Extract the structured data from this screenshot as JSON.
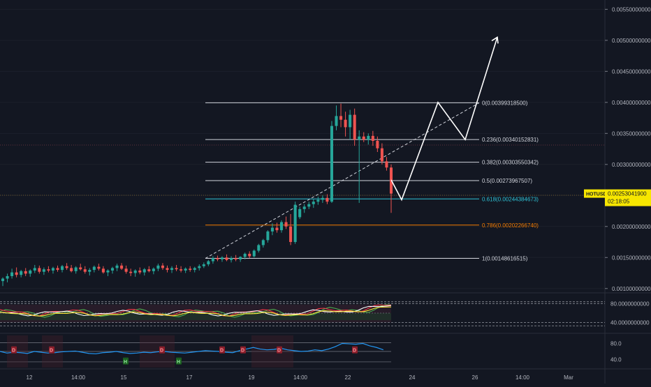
{
  "symbol_badge": {
    "symbol": "HOTUSD",
    "price": "0.00253041900",
    "countdown": "02:18:05"
  },
  "colors": {
    "background": "#131722",
    "up": "#26a69a",
    "down": "#ef5350",
    "fib_white": "#d1d4dc",
    "fib_cyan": "#2ec3d6",
    "fib_orange": "#f57c00",
    "badge": "#f7e600",
    "projection": "#ffffff",
    "rsi_line": "#2196f3",
    "indicator_green": "#4caf50",
    "indicator_red": "#f23645",
    "indicator_yellow": "#ffeb3b"
  },
  "chart_data": {
    "type": "candlestick",
    "y_axis": {
      "ticks": [
        "0.00550000000",
        "0.00500000000",
        "0.00450000000",
        "0.00400000000",
        "0.00350000000",
        "0.00300000000",
        "0.00250000000",
        "0.00200000000",
        "0.00150000000",
        "0.00100000000"
      ],
      "range": [
        0.00093,
        0.00565
      ]
    },
    "x_axis": {
      "ticks": [
        "12",
        "14:00",
        "15",
        "17",
        "19",
        "14:00",
        "22",
        "24",
        "26",
        "14:00",
        "Mar"
      ]
    },
    "fib_levels": [
      {
        "label": "0(0.00399318500)",
        "value": 0.003993185,
        "color": "white"
      },
      {
        "label": "0.236(0.00340152831)",
        "value": 0.00340152831,
        "color": "white"
      },
      {
        "label": "0.382(0.00303550342)",
        "value": 0.00303550342,
        "color": "white"
      },
      {
        "label": "0.5(0.00273967507)",
        "value": 0.00273967507,
        "color": "white"
      },
      {
        "label": "0.618(0.00244384673)",
        "value": 0.00244384673,
        "color": "cyan"
      },
      {
        "label": "0.786(0.00202266740)",
        "value": 0.0020226674,
        "color": "orange"
      },
      {
        "label": "1(0.00148616515)",
        "value": 0.00148616515,
        "color": "white"
      }
    ],
    "candles": [
      [
        0.00112,
        0.00118,
        0.00104,
        0.00116
      ],
      [
        0.00116,
        0.00124,
        0.0011,
        0.0012
      ],
      [
        0.0012,
        0.00132,
        0.00116,
        0.00126
      ],
      [
        0.00126,
        0.00134,
        0.00118,
        0.00122
      ],
      [
        0.00122,
        0.0013,
        0.00118,
        0.00128
      ],
      [
        0.00128,
        0.00133,
        0.0012,
        0.00124
      ],
      [
        0.00124,
        0.00131,
        0.00119,
        0.00129
      ],
      [
        0.00129,
        0.00138,
        0.00125,
        0.00133
      ],
      [
        0.00133,
        0.00137,
        0.00124,
        0.00127
      ],
      [
        0.00127,
        0.00134,
        0.00122,
        0.00131
      ],
      [
        0.00131,
        0.00136,
        0.00126,
        0.00129
      ],
      [
        0.00129,
        0.00135,
        0.00124,
        0.00133
      ],
      [
        0.00133,
        0.00137,
        0.00127,
        0.0013
      ],
      [
        0.0013,
        0.00138,
        0.00126,
        0.00136
      ],
      [
        0.00136,
        0.00141,
        0.0013,
        0.00133
      ],
      [
        0.00133,
        0.00138,
        0.00126,
        0.00128
      ],
      [
        0.00128,
        0.00136,
        0.00124,
        0.00134
      ],
      [
        0.00134,
        0.0014,
        0.00129,
        0.00131
      ],
      [
        0.00131,
        0.00136,
        0.00124,
        0.00127
      ],
      [
        0.00127,
        0.00133,
        0.00121,
        0.0013
      ],
      [
        0.0013,
        0.00137,
        0.00126,
        0.00135
      ],
      [
        0.00135,
        0.0014,
        0.00129,
        0.00132
      ],
      [
        0.00132,
        0.00136,
        0.00124,
        0.00126
      ],
      [
        0.00126,
        0.00131,
        0.0012,
        0.00129
      ],
      [
        0.00129,
        0.00135,
        0.00124,
        0.00133
      ],
      [
        0.00133,
        0.0014,
        0.00128,
        0.00137
      ],
      [
        0.00137,
        0.00141,
        0.0013,
        0.00132
      ],
      [
        0.00132,
        0.00137,
        0.00124,
        0.00127
      ],
      [
        0.00127,
        0.00132,
        0.0012,
        0.00125
      ],
      [
        0.00125,
        0.00131,
        0.00119,
        0.00129
      ],
      [
        0.00129,
        0.00134,
        0.00123,
        0.00126
      ],
      [
        0.00126,
        0.00133,
        0.00121,
        0.00131
      ],
      [
        0.00131,
        0.00136,
        0.00126,
        0.00128
      ],
      [
        0.00128,
        0.00134,
        0.00123,
        0.00132
      ],
      [
        0.00132,
        0.0014,
        0.00128,
        0.00137
      ],
      [
        0.00137,
        0.00141,
        0.0013,
        0.00133
      ],
      [
        0.00133,
        0.00137,
        0.00126,
        0.0013
      ],
      [
        0.0013,
        0.00136,
        0.00125,
        0.00133
      ],
      [
        0.00133,
        0.00138,
        0.00128,
        0.00131
      ],
      [
        0.00131,
        0.00136,
        0.00126,
        0.00129
      ],
      [
        0.00129,
        0.00134,
        0.00125,
        0.00132
      ],
      [
        0.00132,
        0.00136,
        0.00127,
        0.0013
      ],
      [
        0.0013,
        0.00135,
        0.00126,
        0.00133
      ],
      [
        0.00133,
        0.00139,
        0.00129,
        0.00136
      ],
      [
        0.00136,
        0.00142,
        0.00133,
        0.00139
      ],
      [
        0.00139,
        0.00146,
        0.00136,
        0.00144
      ],
      [
        0.00144,
        0.00152,
        0.0014,
        0.00149
      ],
      [
        0.00149,
        0.00153,
        0.00144,
        0.00147
      ],
      [
        0.00147,
        0.00152,
        0.00143,
        0.0015
      ],
      [
        0.0015,
        0.00155,
        0.00144,
        0.00146
      ],
      [
        0.00146,
        0.00152,
        0.00142,
        0.00149
      ],
      [
        0.00149,
        0.00154,
        0.00144,
        0.00147
      ],
      [
        0.00147,
        0.00152,
        0.00143,
        0.00151
      ],
      [
        0.00151,
        0.00158,
        0.00147,
        0.00156
      ],
      [
        0.00156,
        0.0016,
        0.00149,
        0.00152
      ],
      [
        0.00152,
        0.00163,
        0.0015,
        0.00161
      ],
      [
        0.00161,
        0.00172,
        0.00158,
        0.0017
      ],
      [
        0.0017,
        0.0018,
        0.00166,
        0.00178
      ],
      [
        0.00178,
        0.00194,
        0.00174,
        0.00192
      ],
      [
        0.00192,
        0.00205,
        0.00186,
        0.00198
      ],
      [
        0.00198,
        0.00206,
        0.0019,
        0.00194
      ],
      [
        0.00194,
        0.0021,
        0.0019,
        0.00207
      ],
      [
        0.00207,
        0.00216,
        0.00196,
        0.002
      ],
      [
        0.002,
        0.0022,
        0.0017,
        0.00175
      ],
      [
        0.00175,
        0.0024,
        0.00172,
        0.00235
      ],
      [
        0.00215,
        0.00232,
        0.00212,
        0.00228
      ],
      [
        0.00228,
        0.00236,
        0.00222,
        0.00232
      ],
      [
        0.00232,
        0.0024,
        0.00228,
        0.00236
      ],
      [
        0.00236,
        0.00244,
        0.0023,
        0.0024
      ],
      [
        0.0024,
        0.00248,
        0.00235,
        0.00243
      ],
      [
        0.00243,
        0.0025,
        0.00238,
        0.00246
      ],
      [
        0.00246,
        0.00252,
        0.00236,
        0.0024
      ],
      [
        0.0024,
        0.0037,
        0.00238,
        0.00362
      ],
      [
        0.00362,
        0.00395,
        0.00355,
        0.00378
      ],
      [
        0.00378,
        0.00398,
        0.0036,
        0.00372
      ],
      [
        0.00372,
        0.00385,
        0.00345,
        0.0036
      ],
      [
        0.0036,
        0.00388,
        0.0034,
        0.0038
      ],
      [
        0.0038,
        0.0039,
        0.0033,
        0.0034
      ],
      [
        0.0034,
        0.00355,
        0.00238,
        0.00345
      ],
      [
        0.00345,
        0.00352,
        0.00336,
        0.0034
      ],
      [
        0.0034,
        0.0035,
        0.00332,
        0.00346
      ],
      [
        0.00346,
        0.00354,
        0.0033,
        0.00338
      ],
      [
        0.00338,
        0.00345,
        0.0032,
        0.00326
      ],
      [
        0.00326,
        0.00334,
        0.003,
        0.00305
      ],
      [
        0.00305,
        0.00312,
        0.0029,
        0.00295
      ],
      [
        0.00295,
        0.003,
        0.00222,
        0.00253
      ]
    ],
    "projection_path": [
      [
        0.00253,
        0.00243
      ],
      [
        0.00252,
        0.004
      ],
      [
        0.00244,
        0.0034
      ],
      [
        0.0023,
        0.005
      ]
    ],
    "rsi_panel": {
      "ticks": [
        "80.0000000000",
        "40.0000000000"
      ],
      "range": [
        20,
        100
      ]
    },
    "stoch_panel": {
      "ticks": [
        "80.0",
        "40.0"
      ],
      "range": [
        20,
        100
      ],
      "markers": [
        "D",
        "D",
        "H",
        "D",
        "H",
        "D",
        "D",
        "D",
        "D"
      ]
    }
  }
}
